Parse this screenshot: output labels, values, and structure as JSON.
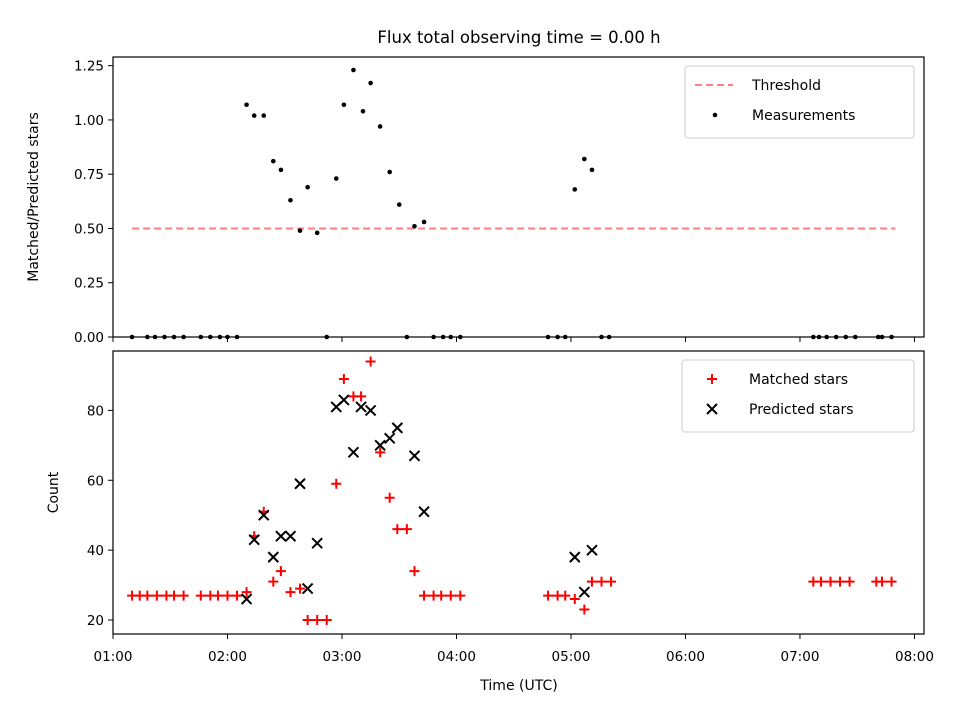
{
  "figure": {
    "title": "Flux total observing time = 0.00 h",
    "xlabel": "Time (UTC)"
  },
  "chart_data": [
    {
      "type": "scatter",
      "ylabel": "Matched/Predicted stars",
      "xlim": [
        "01:00",
        "08:05"
      ],
      "ylim": [
        0,
        1.29
      ],
      "yticks": [
        "0.00",
        "0.25",
        "0.50",
        "0.75",
        "1.00",
        "1.25"
      ],
      "legend_position": "top-right",
      "grid": false,
      "threshold": {
        "name": "Threshold",
        "value": 0.5,
        "x_range": [
          "01:10",
          "07:50"
        ],
        "color": "#ff7f7f",
        "style": "dashed"
      },
      "series": [
        {
          "name": "Measurements",
          "marker": "dot",
          "color": "#000000",
          "points": [
            [
              "01:10",
              0
            ],
            [
              "01:18",
              0
            ],
            [
              "01:22",
              0
            ],
            [
              "01:27",
              0
            ],
            [
              "01:32",
              0
            ],
            [
              "01:37",
              0
            ],
            [
              "01:46",
              0
            ],
            [
              "01:51",
              0
            ],
            [
              "01:56",
              0
            ],
            [
              "02:00",
              0
            ],
            [
              "02:05",
              0
            ],
            [
              "02:10",
              1.07
            ],
            [
              "02:14",
              1.02
            ],
            [
              "02:19",
              1.02
            ],
            [
              "02:24",
              0.81
            ],
            [
              "02:28",
              0.77
            ],
            [
              "02:33",
              0.63
            ],
            [
              "02:38",
              0.49
            ],
            [
              "02:42",
              0.69
            ],
            [
              "02:47",
              0.48
            ],
            [
              "02:52",
              0
            ],
            [
              "02:57",
              0.73
            ],
            [
              "03:01",
              1.07
            ],
            [
              "03:06",
              1.23
            ],
            [
              "03:11",
              1.04
            ],
            [
              "03:15",
              1.17
            ],
            [
              "03:20",
              0.97
            ],
            [
              "03:25",
              0.76
            ],
            [
              "03:30",
              0.61
            ],
            [
              "03:34",
              0
            ],
            [
              "03:38",
              0.51
            ],
            [
              "03:43",
              0.53
            ],
            [
              "03:48",
              0
            ],
            [
              "03:53",
              0
            ],
            [
              "03:57",
              0
            ],
            [
              "04:02",
              0
            ],
            [
              "04:48",
              0
            ],
            [
              "04:53",
              0
            ],
            [
              "04:57",
              0
            ],
            [
              "05:02",
              0.68
            ],
            [
              "05:07",
              0.82
            ],
            [
              "05:11",
              0.77
            ],
            [
              "05:16",
              0
            ],
            [
              "05:20",
              0
            ],
            [
              "07:07",
              0
            ],
            [
              "07:10",
              0
            ],
            [
              "07:14",
              0
            ],
            [
              "07:19",
              0
            ],
            [
              "07:24",
              0
            ],
            [
              "07:29",
              0
            ],
            [
              "07:41",
              0
            ],
            [
              "07:43",
              0
            ],
            [
              "07:48",
              0
            ]
          ]
        }
      ]
    },
    {
      "type": "scatter",
      "ylabel": "Count",
      "xlabel": "Time (UTC)",
      "xlim": [
        "01:00",
        "08:05"
      ],
      "ylim": [
        16,
        97
      ],
      "yticks": [
        "20",
        "40",
        "60",
        "80"
      ],
      "xticks": [
        "01:00",
        "02:00",
        "03:00",
        "04:00",
        "05:00",
        "06:00",
        "07:00",
        "08:00"
      ],
      "legend_position": "top-right",
      "grid": false,
      "series": [
        {
          "name": "Matched stars",
          "marker": "plus",
          "color": "#ff0000",
          "points": [
            [
              "01:10",
              27
            ],
            [
              "01:14",
              27
            ],
            [
              "01:18",
              27
            ],
            [
              "01:23",
              27
            ],
            [
              "01:28",
              27
            ],
            [
              "01:32",
              27
            ],
            [
              "01:37",
              27
            ],
            [
              "01:46",
              27
            ],
            [
              "01:51",
              27
            ],
            [
              "01:55",
              27
            ],
            [
              "02:00",
              27
            ],
            [
              "02:05",
              27
            ],
            [
              "02:10",
              28
            ],
            [
              "02:14",
              44
            ],
            [
              "02:19",
              51
            ],
            [
              "02:24",
              31
            ],
            [
              "02:28",
              34
            ],
            [
              "02:33",
              28
            ],
            [
              "02:38",
              29
            ],
            [
              "02:42",
              20
            ],
            [
              "02:47",
              20
            ],
            [
              "02:52",
              20
            ],
            [
              "02:57",
              59
            ],
            [
              "03:01",
              89
            ],
            [
              "03:06",
              84
            ],
            [
              "03:10",
              84
            ],
            [
              "03:15",
              94
            ],
            [
              "03:20",
              68
            ],
            [
              "03:25",
              55
            ],
            [
              "03:29",
              46
            ],
            [
              "03:34",
              46
            ],
            [
              "03:38",
              34
            ],
            [
              "03:43",
              27
            ],
            [
              "03:48",
              27
            ],
            [
              "03:52",
              27
            ],
            [
              "03:57",
              27
            ],
            [
              "04:02",
              27
            ],
            [
              "04:48",
              27
            ],
            [
              "04:53",
              27
            ],
            [
              "04:57",
              27
            ],
            [
              "05:02",
              26
            ],
            [
              "05:07",
              23
            ],
            [
              "05:11",
              31
            ],
            [
              "05:16",
              31
            ],
            [
              "05:21",
              31
            ],
            [
              "07:07",
              31
            ],
            [
              "07:11",
              31
            ],
            [
              "07:16",
              31
            ],
            [
              "07:21",
              31
            ],
            [
              "07:26",
              31
            ],
            [
              "07:40",
              31
            ],
            [
              "07:43",
              31
            ],
            [
              "07:48",
              31
            ]
          ]
        },
        {
          "name": "Predicted stars",
          "marker": "x",
          "color": "#000000",
          "points": [
            [
              "02:10",
              26
            ],
            [
              "02:14",
              43
            ],
            [
              "02:19",
              50
            ],
            [
              "02:24",
              38
            ],
            [
              "02:28",
              44
            ],
            [
              "02:33",
              44
            ],
            [
              "02:38",
              59
            ],
            [
              "02:42",
              29
            ],
            [
              "02:47",
              42
            ],
            [
              "02:57",
              81
            ],
            [
              "03:01",
              83
            ],
            [
              "03:06",
              68
            ],
            [
              "03:10",
              81
            ],
            [
              "03:15",
              80
            ],
            [
              "03:20",
              70
            ],
            [
              "03:25",
              72
            ],
            [
              "03:29",
              75
            ],
            [
              "03:38",
              67
            ],
            [
              "03:43",
              51
            ],
            [
              "05:02",
              38
            ],
            [
              "05:07",
              28
            ],
            [
              "05:11",
              40
            ]
          ]
        }
      ]
    }
  ]
}
